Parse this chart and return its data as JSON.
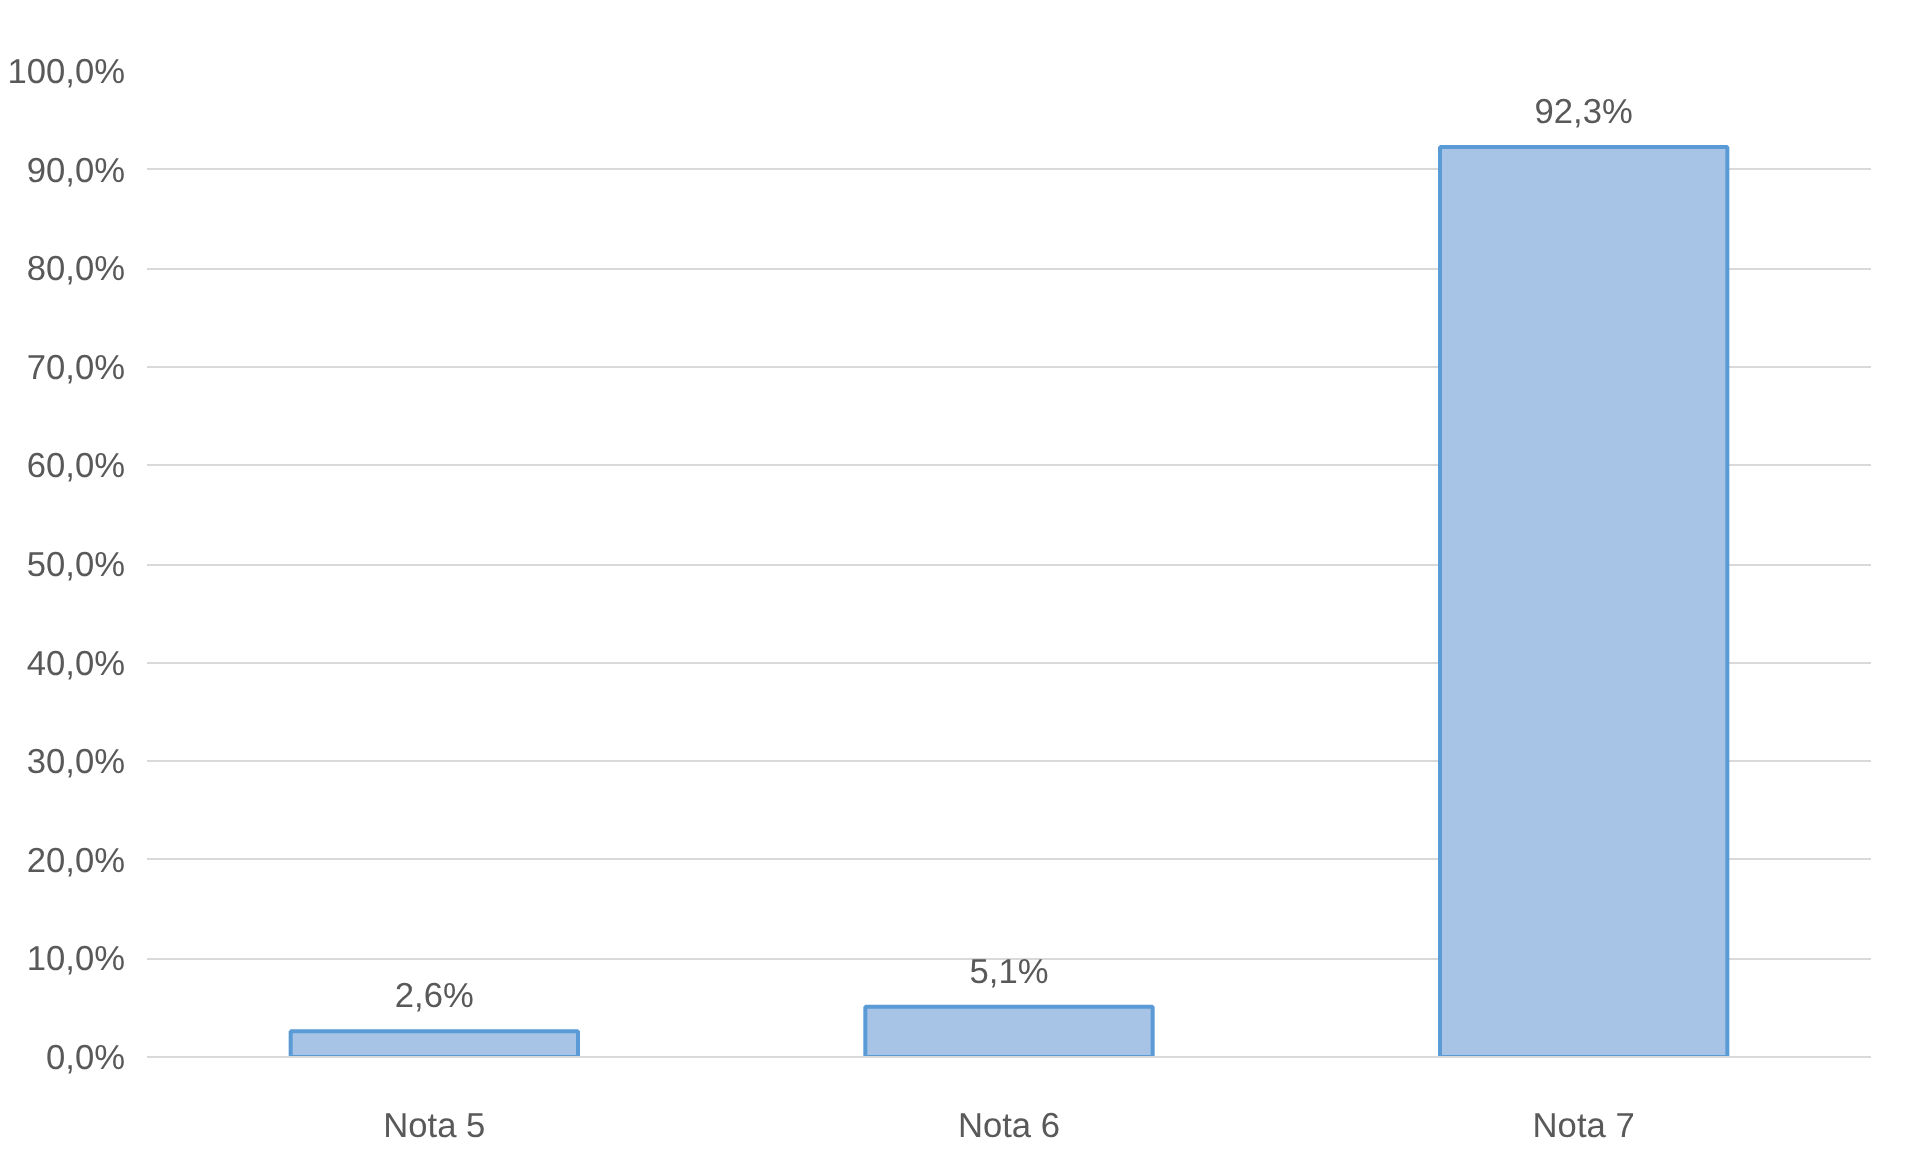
{
  "chart_data": {
    "type": "bar",
    "categories": [
      "Nota 5",
      "Nota 6",
      "Nota 7"
    ],
    "values": [
      2.6,
      5.1,
      92.3
    ],
    "value_labels": [
      "2,6%",
      "5,1%",
      "92,3%"
    ],
    "color": "#a7c4e7",
    "ylim": [
      0,
      100
    ],
    "yticks": [
      {
        "value": 0,
        "label": "0,0%"
      },
      {
        "value": 10,
        "label": "10,0%"
      },
      {
        "value": 20,
        "label": "20,0%"
      },
      {
        "value": 30,
        "label": "30,0%"
      },
      {
        "value": 40,
        "label": "40,0%"
      },
      {
        "value": 50,
        "label": "50,0%"
      },
      {
        "value": 60,
        "label": "60,0%"
      },
      {
        "value": 70,
        "label": "70,0%"
      },
      {
        "value": 80,
        "label": "80,0%"
      },
      {
        "value": 90,
        "label": "90,0%"
      },
      {
        "value": 100,
        "label": "100,0%"
      }
    ],
    "grid": "y"
  }
}
